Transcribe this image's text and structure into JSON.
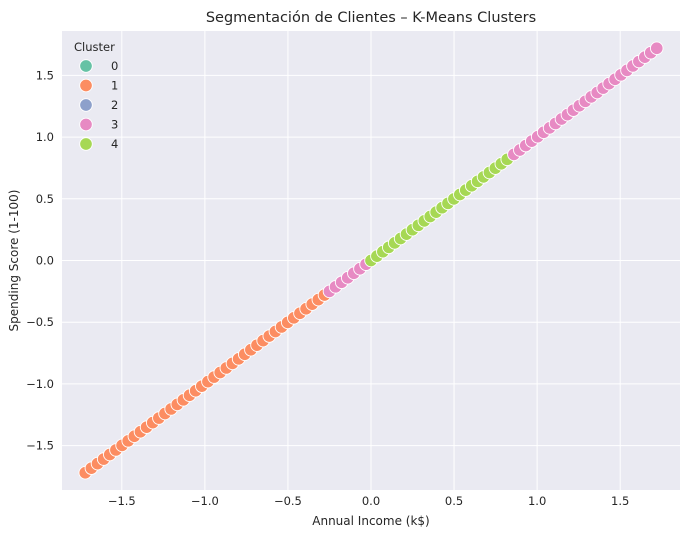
{
  "chart_data": {
    "type": "scatter",
    "title": "Segmentación de Clientes – K-Means Clusters",
    "xlabel": "Annual Income (k$)",
    "ylabel": "Spending Score (1-100)",
    "xlim": [
      -1.86,
      1.86
    ],
    "ylim": [
      -1.86,
      1.86
    ],
    "xticks": [
      -1.5,
      -1.0,
      -0.5,
      0.0,
      0.5,
      1.0,
      1.5
    ],
    "yticks": [
      -1.5,
      -1.0,
      -0.5,
      0.0,
      0.5,
      1.0,
      1.5
    ],
    "xtick_labels": [
      "−1.5",
      "−1.0",
      "−0.5",
      "0.0",
      "0.5",
      "1.0",
      "1.5"
    ],
    "ytick_labels": [
      "−1.5",
      "−1.0",
      "−0.5",
      "0.0",
      "0.5",
      "1.0",
      "1.5"
    ],
    "grid": true,
    "background": "#eaeaf2",
    "legend": {
      "title": "Cluster",
      "placement": "top-left",
      "entries": [
        {
          "label": "0",
          "color": "#66c2a5"
        },
        {
          "label": "1",
          "color": "#fc8d62"
        },
        {
          "label": "2",
          "color": "#8da0cb"
        },
        {
          "label": "3",
          "color": "#e78ac3"
        },
        {
          "label": "4",
          "color": "#a6d854"
        }
      ]
    },
    "series": [
      {
        "name": "1",
        "color": "#fc8d62",
        "x_range": [
          -1.72,
          -0.28
        ],
        "n": 40,
        "relation": "y = x"
      },
      {
        "name": "3",
        "color": "#e78ac3",
        "x_range": [
          -0.25,
          -0.03
        ],
        "n": 7,
        "relation": "y = x"
      },
      {
        "name": "4",
        "color": "#a6d854",
        "x_range": [
          0.0,
          0.82
        ],
        "n": 24,
        "relation": "y = x"
      },
      {
        "name": "3",
        "color": "#e78ac3",
        "x_range": [
          0.86,
          1.72
        ],
        "n": 25,
        "relation": "y = x"
      }
    ]
  }
}
